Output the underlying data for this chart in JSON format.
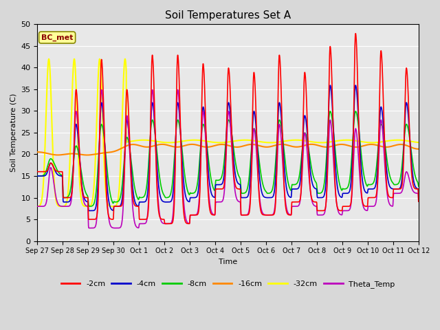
{
  "title": "Soil Temperatures Set A",
  "xlabel": "Time",
  "ylabel": "Soil Temperature (C)",
  "ylim": [
    0,
    50
  ],
  "yticks": [
    0,
    5,
    10,
    15,
    20,
    25,
    30,
    35,
    40,
    45,
    50
  ],
  "plot_bg": "#e8e8e8",
  "fig_bg": "#d8d8d8",
  "line_colors": {
    "2cm": "#ff0000",
    "4cm": "#0000cc",
    "8cm": "#00cc00",
    "16cm": "#ff8800",
    "32cm": "#ffff00",
    "Theta": "#bb00bb"
  },
  "line_labels": {
    "2cm": "-2cm",
    "4cm": "-4cm",
    "8cm": "-8cm",
    "16cm": "-16cm",
    "32cm": "-32cm",
    "Theta": "Theta_Temp"
  },
  "annotation_text": "BC_met",
  "annotation_color": "#8b0000",
  "annotation_bg": "#ffff99",
  "n_days": 15,
  "xtick_labels": [
    "Sep 27",
    "Sep 28",
    "Sep 29",
    "Sep 30",
    "Oct 1",
    "Oct 2",
    "Oct 3",
    "Oct 4",
    "Oct 5",
    "Oct 6",
    "Oct 7",
    "Oct 8",
    "Oct 9",
    "Oct 10",
    "Oct 11",
    "Oct 12"
  ],
  "legend_ncol": 6,
  "grid_color": "#ffffff",
  "line_width": 1.2
}
